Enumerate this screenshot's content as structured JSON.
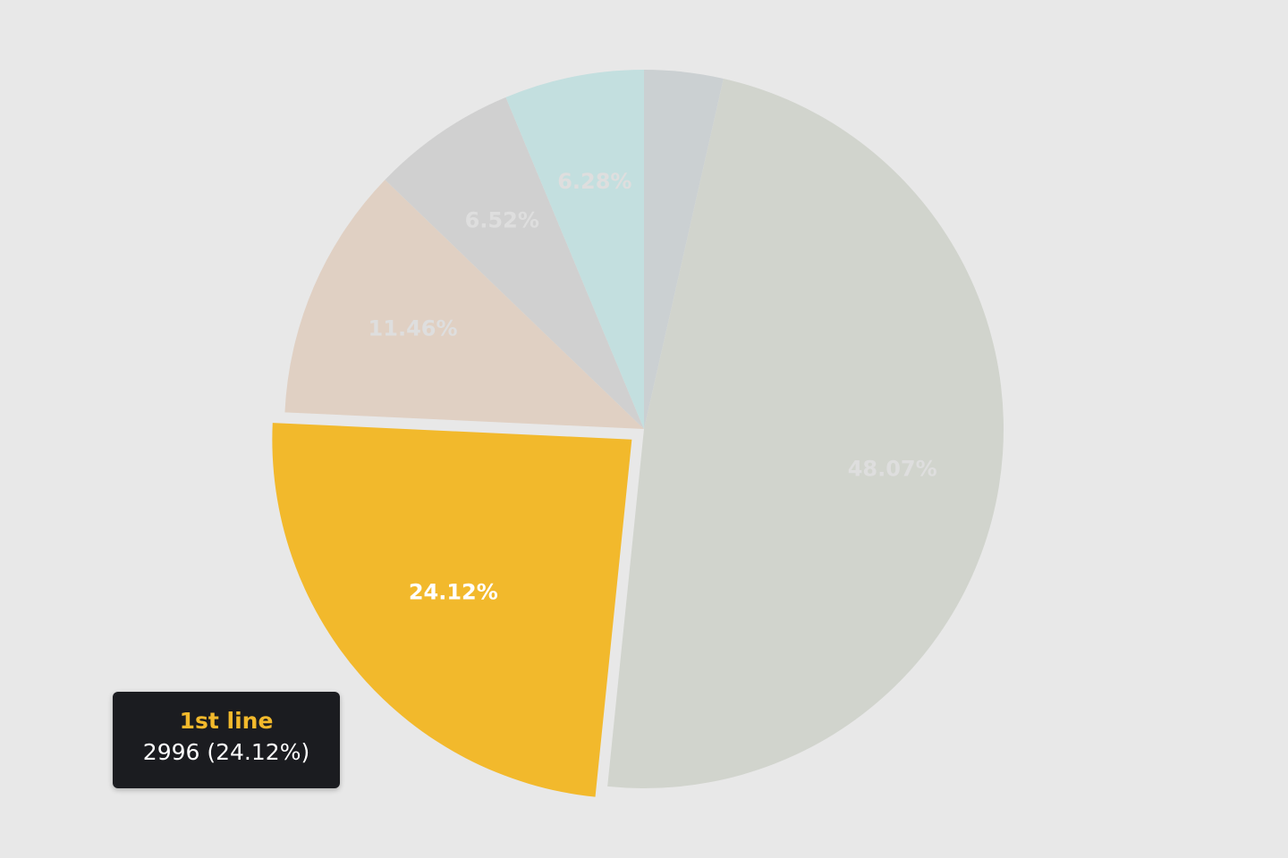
{
  "chart_data": {
    "type": "pie",
    "slices": [
      {
        "percent": 3.55,
        "label": "",
        "color": "#cbd0d2"
      },
      {
        "percent": 48.07,
        "label": "48.07%",
        "color": "#d1d4cd"
      },
      {
        "value": 2996,
        "percent": 24.12,
        "label": "24.12%",
        "color": "#f2b92c",
        "active": true,
        "name": "1st line"
      },
      {
        "percent": 11.46,
        "label": "11.46%",
        "color": "#e0d0c3"
      },
      {
        "percent": 6.52,
        "label": "6.52%",
        "color": "#d0d0d0"
      },
      {
        "percent": 6.28,
        "label": "6.28%",
        "color": "#c3dfdf"
      }
    ]
  },
  "tooltip": {
    "title": "1st line",
    "value": "2996 (24.12%)",
    "title_color": "#f2b92c"
  }
}
